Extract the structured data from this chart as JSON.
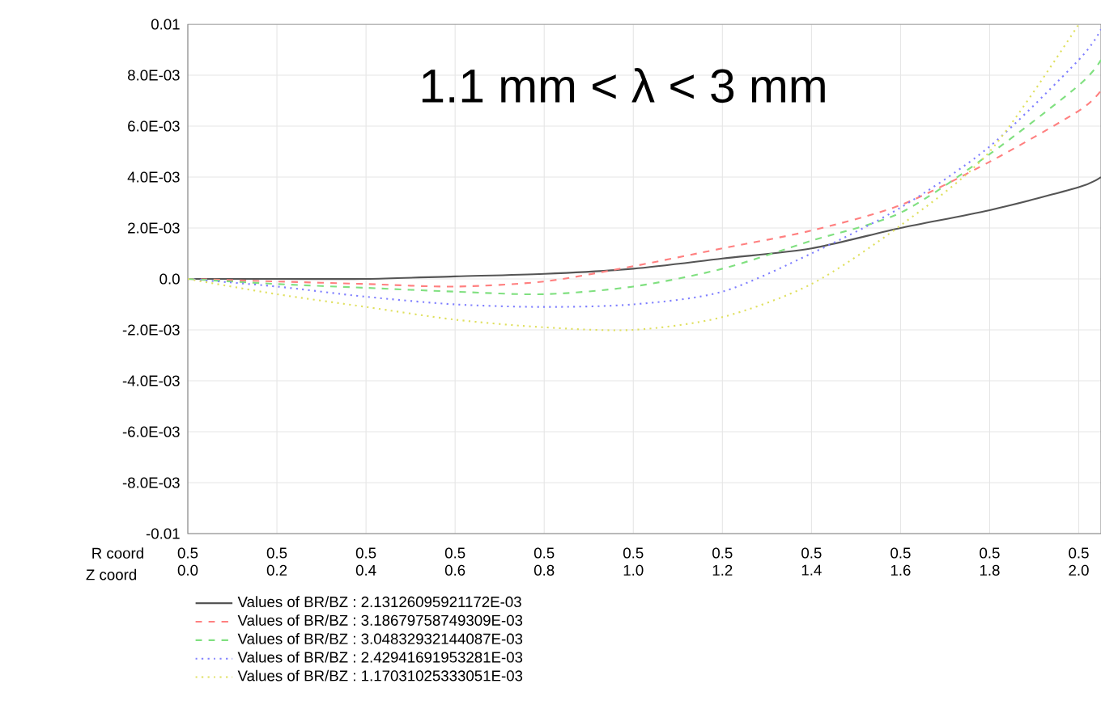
{
  "chart_data": {
    "type": "line",
    "x": [
      0,
      0.2,
      0.4,
      0.6,
      0.8,
      1.0,
      1.2,
      1.4,
      1.6,
      1.8,
      2.0,
      2.05
    ],
    "series": [
      {
        "name": "Values of BR/BZ : 2.13126095921172E-03",
        "color": "#555555",
        "line_style": "solid",
        "values": [
          0,
          0,
          0,
          0.0001,
          0.0002,
          0.0004,
          0.0008,
          0.0012,
          0.002,
          0.0027,
          0.0036,
          0.004
        ]
      },
      {
        "name": "Values of BR/BZ : 3.18679758749309E-03",
        "color": "#ff8080",
        "line_style": "dashed",
        "values": [
          0,
          -0.0001,
          -0.0002,
          -0.0003,
          -0.0001,
          0.0005,
          0.0012,
          0.0019,
          0.0029,
          0.0046,
          0.0066,
          0.0074
        ]
      },
      {
        "name": "Values of BR/BZ : 3.04832932144087E-03",
        "color": "#80e080",
        "line_style": "dashed",
        "values": [
          0,
          -0.0002,
          -0.00035,
          -0.0005,
          -0.0006,
          -0.0003,
          0.0004,
          0.0015,
          0.0026,
          0.0049,
          0.0076,
          0.0086
        ]
      },
      {
        "name": "Values of BR/BZ : 2.42941691953281E-03",
        "color": "#8080ff",
        "line_style": "dotted",
        "values": [
          0,
          -0.0003,
          -0.0007,
          -0.001,
          -0.0011,
          -0.001,
          -0.0005,
          0.001,
          0.0028,
          0.0052,
          0.0086,
          0.0098
        ]
      },
      {
        "name": "Values of BR/BZ : 1.17031025333051E-03",
        "color": "#e0e060",
        "line_style": "dotted",
        "values": [
          0,
          -0.0006,
          -0.0011,
          -0.0016,
          -0.0019,
          -0.002,
          -0.0015,
          -0.0002,
          0.0021,
          0.005,
          0.01,
          null
        ]
      }
    ],
    "xlim": [
      0,
      2.05
    ],
    "ylim": [
      -0.01,
      0.01
    ],
    "xticks": [
      {
        "value": 0,
        "label": "0.0"
      },
      0.2,
      0.4,
      0.6,
      0.8,
      {
        "value": 1,
        "label": "1.0"
      },
      1.2,
      1.4,
      1.6,
      1.8,
      {
        "value": 2,
        "label": "2.0"
      }
    ],
    "yticks": [
      -0.01,
      {
        "value": -0.008,
        "label": "-8.0E-03"
      },
      {
        "value": -0.006,
        "label": "-6.0E-03"
      },
      {
        "value": -0.004,
        "label": "-4.0E-03"
      },
      {
        "value": -0.002,
        "label": "-2.0E-03"
      },
      {
        "value": 0,
        "label": "0.0"
      },
      {
        "value": 0.002,
        "label": "2.0E-03"
      },
      {
        "value": 0.004,
        "label": "4.0E-03"
      },
      {
        "value": 0.006,
        "label": "6.0E-03"
      },
      {
        "value": 0.008,
        "label": "8.0E-03"
      },
      0.01
    ],
    "xlabel": "Z coord",
    "grid": true,
    "legend": "bottom",
    "annotations": [
      "1.1 mm < λ < 3 mm",
      "R coord",
      "0.5",
      "0.5",
      "0.5",
      "0.5",
      "0.5",
      "0.5",
      "0.5",
      "0.5",
      "0.5",
      "0.5",
      "0.5"
    ]
  }
}
